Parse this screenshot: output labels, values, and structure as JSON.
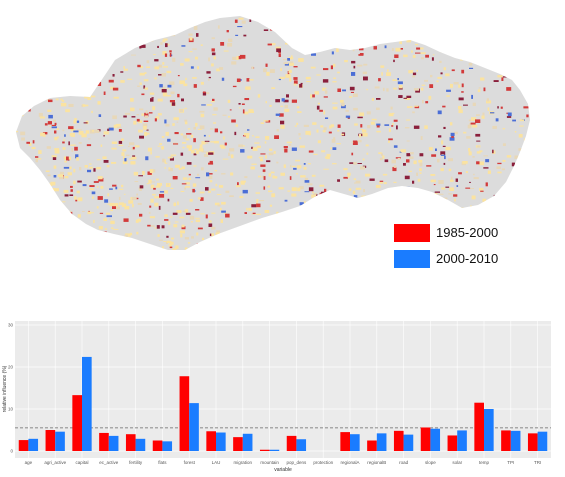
{
  "legend": {
    "items": [
      {
        "label": "1985-2000",
        "color": "#ff0000"
      },
      {
        "label": "2000-2010",
        "color": "#1a7cff"
      }
    ]
  },
  "map": {
    "base_color": "#dcdcdc",
    "land_colors": [
      "#fbe3a0",
      "#e8d8b8",
      "#d23a3a",
      "#8a1f3b",
      "#4b6ed6"
    ]
  },
  "chart_data": {
    "type": "bar",
    "title": "",
    "xlabel": "variable",
    "ylabel": "relative influence (%)",
    "ylim": [
      0,
      30
    ],
    "yticks": [
      0,
      10,
      20,
      30
    ],
    "reference_line": 5.5,
    "grid": true,
    "background": "#ebebeb",
    "categories": [
      "age",
      "agri_active",
      "capital",
      "ec_active",
      "fertility",
      "flats",
      "forest",
      "LAU",
      "migration",
      "mountain",
      "pop_dens",
      "protection",
      "regionalA",
      "regionalB",
      "road",
      "slope",
      "solar",
      "temp",
      "TPI",
      "TRI"
    ],
    "series": [
      {
        "name": "1985-2000",
        "color": "#ff0000",
        "values": [
          2.6,
          5.0,
          13.3,
          4.3,
          4.0,
          2.5,
          17.8,
          4.7,
          3.3,
          0.3,
          3.6,
          0.0,
          4.5,
          2.5,
          4.8,
          5.6,
          3.7,
          11.5,
          4.9,
          4.2
        ]
      },
      {
        "name": "2000-2010",
        "color": "#1a7cff",
        "values": [
          2.9,
          4.6,
          22.4,
          3.6,
          2.9,
          2.3,
          11.4,
          4.4,
          4.1,
          0.3,
          2.8,
          0.0,
          4.0,
          4.2,
          3.9,
          5.3,
          4.9,
          10.0,
          4.8,
          4.6
        ]
      }
    ]
  }
}
